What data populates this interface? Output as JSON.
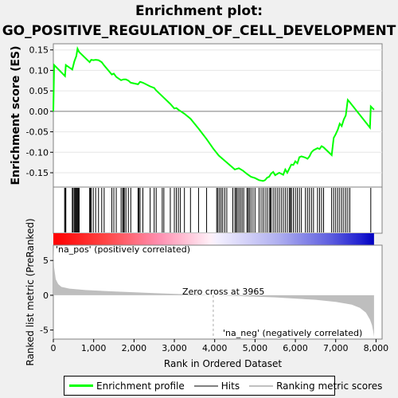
{
  "title_line1": "Enrichment plot:",
  "title_line2": "GO_POSITIVE_REGULATION_OF_CELL_DEVELOPMENT",
  "legend": {
    "items": [
      {
        "label": "Enrichment profile",
        "color": "#00ff00"
      },
      {
        "label": "Hits",
        "color": "#808080"
      },
      {
        "label": "Ranking metric scores",
        "color": "#c0c0c0"
      }
    ]
  },
  "annotations": {
    "pos_label": "'na_pos' (positively correlated)",
    "neg_label": "'na_neg' (negatively correlated)",
    "zero_cross": "Zero cross at 3965"
  },
  "colors": {
    "profile": "#00ff00",
    "pos": "#ff0000",
    "neg": "#0000ff",
    "metric": "#bebebe",
    "pos_text": "#ff0000",
    "neg_text": "#0000ff"
  },
  "chart_data": {
    "type": "line",
    "title": "Enrichment plot:\nGO_POSITIVE_REGULATION_OF_CELL_DEVELOPMENT",
    "xlabel": "Rank in Ordered Dataset",
    "xlim": [
      0,
      8150
    ],
    "x_ticks": [
      0,
      1000,
      2000,
      3000,
      4000,
      5000,
      6000,
      7000,
      8000
    ],
    "x_tick_labels": [
      "0",
      "1,000",
      "2,000",
      "3,000",
      "4,000",
      "5,000",
      "6,000",
      "7,000",
      "8,000"
    ],
    "zero_cross": 3965,
    "es_panel": {
      "ylabel": "Enrichment score (ES)",
      "ylim": [
        -0.185,
        0.165
      ],
      "y_ticks": [
        -0.15,
        -0.1,
        -0.05,
        0.0,
        0.05,
        0.1,
        0.15
      ],
      "y_tick_labels": [
        "-0.15",
        "-0.10",
        "-0.05",
        "0.00",
        "0.05",
        "0.10",
        "0.15"
      ],
      "series": [
        {
          "name": "Enrichment profile",
          "x": [
            0,
            20,
            290,
            310,
            470,
            520,
            570,
            600,
            640,
            900,
            940,
            990,
            1050,
            1120,
            1200,
            1260,
            1450,
            1500,
            1560,
            1680,
            1740,
            1800,
            1860,
            1920,
            2100,
            2150,
            2220,
            2400,
            2500,
            2550,
            2700,
            2900,
            3000,
            3050,
            3100,
            3250,
            3400,
            3600,
            3800,
            3965,
            4100,
            4300,
            4500,
            4600,
            4700,
            4800,
            4900,
            5000,
            5100,
            5200,
            5250,
            5300,
            5350,
            5400,
            5450,
            5500,
            5600,
            5700,
            5750,
            5800,
            5900,
            5950,
            6000,
            6050,
            6100,
            6150,
            6250,
            6300,
            6350,
            6400,
            6450,
            6550,
            6600,
            6650,
            6700,
            6900,
            6950,
            7000,
            7050,
            7100,
            7150,
            7200,
            7250,
            7300,
            7350,
            7850,
            7870,
            7950
          ],
          "y": [
            0.0,
            0.113,
            0.086,
            0.113,
            0.102,
            0.122,
            0.135,
            0.153,
            0.145,
            0.12,
            0.126,
            0.125,
            0.126,
            0.125,
            0.12,
            0.112,
            0.09,
            0.092,
            0.084,
            0.076,
            0.078,
            0.078,
            0.075,
            0.07,
            0.066,
            0.072,
            0.07,
            0.061,
            0.057,
            0.051,
            0.037,
            0.018,
            0.007,
            0.008,
            0.004,
            -0.006,
            -0.018,
            -0.042,
            -0.068,
            -0.091,
            -0.108,
            -0.125,
            -0.142,
            -0.139,
            -0.145,
            -0.153,
            -0.16,
            -0.163,
            -0.168,
            -0.17,
            -0.168,
            -0.162,
            -0.16,
            -0.152,
            -0.148,
            -0.156,
            -0.15,
            -0.155,
            -0.142,
            -0.15,
            -0.13,
            -0.131,
            -0.122,
            -0.127,
            -0.112,
            -0.11,
            -0.113,
            -0.116,
            -0.11,
            -0.1,
            -0.095,
            -0.09,
            -0.092,
            -0.085,
            -0.088,
            -0.107,
            -0.065,
            -0.056,
            -0.045,
            -0.03,
            -0.036,
            -0.02,
            -0.01,
            0.028,
            0.022,
            -0.04,
            0.012,
            0.004
          ]
        }
      ]
    },
    "hits": [
      280,
      300,
      310,
      470,
      490,
      520,
      540,
      560,
      580,
      600,
      620,
      640,
      900,
      920,
      940,
      990,
      1050,
      1120,
      1200,
      1260,
      1450,
      1500,
      1560,
      1680,
      1720,
      1740,
      1760,
      1800,
      1860,
      1920,
      2100,
      2120,
      2150,
      2220,
      2400,
      2500,
      2550,
      2700,
      2740,
      2900,
      3000,
      3050,
      3100,
      3150,
      3250,
      3400,
      3600,
      3800,
      4050,
      4080,
      4120,
      4160,
      4200,
      4250,
      4300,
      4450,
      4500,
      4530,
      4560,
      4600,
      4640,
      4680,
      4720,
      4800,
      4830,
      4860,
      4900,
      4950,
      5000,
      5100,
      5150,
      5200,
      5250,
      5300,
      5350,
      5380,
      5400,
      5450,
      5500,
      5550,
      5600,
      5650,
      5700,
      5750,
      5800,
      5850,
      5880,
      5900,
      5950,
      6000,
      6050,
      6100,
      6150,
      6250,
      6300,
      6350,
      6400,
      6450,
      6550,
      6600,
      6650,
      6700,
      6900,
      6950,
      7000,
      7050,
      7100,
      7150,
      7200,
      7250,
      7300,
      7350,
      7870
    ],
    "metric_panel": {
      "ylabel": "Ranked list metric (PreRanked)",
      "ylim": [
        -6.3,
        7.2
      ],
      "y_ticks": [
        -5,
        0,
        5
      ],
      "y_tick_labels": [
        "-5",
        "0",
        "5"
      ],
      "x": [
        0,
        20,
        60,
        120,
        200,
        400,
        800,
        1500,
        2500,
        3500,
        3965,
        4500,
        5500,
        6500,
        7000,
        7400,
        7600,
        7750,
        7850,
        7900,
        7930,
        7950
      ],
      "y": [
        7.0,
        4.0,
        2.3,
        1.6,
        1.2,
        0.95,
        0.75,
        0.55,
        0.3,
        0.1,
        0.0,
        -0.1,
        -0.3,
        -0.65,
        -0.95,
        -1.35,
        -1.8,
        -2.5,
        -3.5,
        -4.3,
        -5.2,
        -6.0
      ]
    }
  }
}
